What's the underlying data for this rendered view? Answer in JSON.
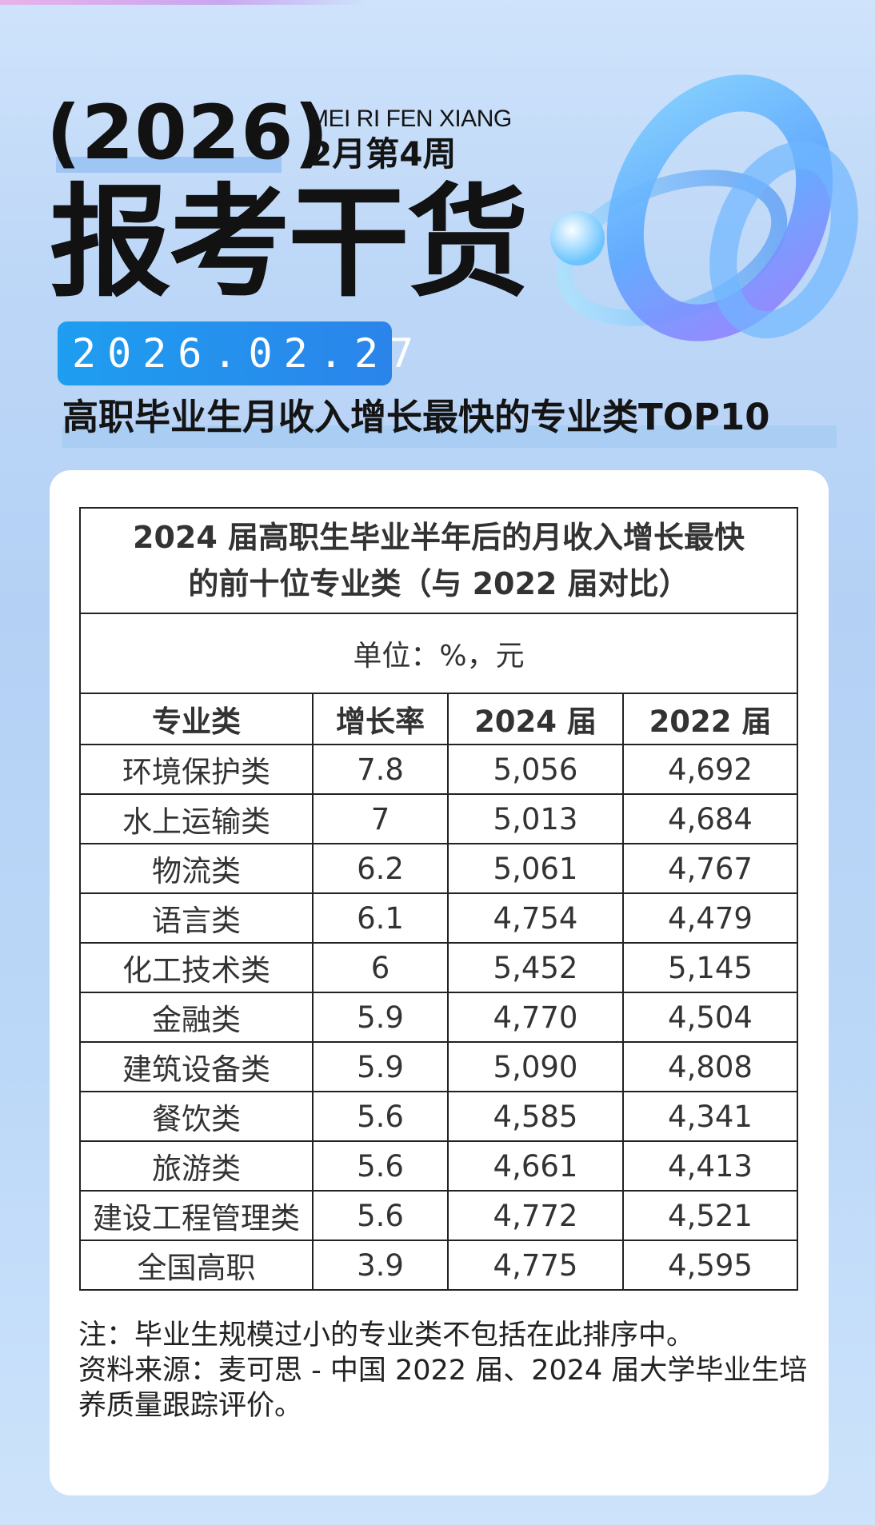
{
  "header": {
    "year": "(2026)",
    "series_en": "MEI RI FEN XIANG",
    "week": "2月第4周",
    "main_title": "报考干货",
    "date": "2026.02.27",
    "headline": "高职毕业生月收入增长最快的专业类TOP10"
  },
  "table": {
    "title_line1": "2024 届高职生毕业半年后的月收入增长最快",
    "title_line2": "的前十位专业类（与 2022 届对比）",
    "unit": "单位：%，元",
    "columns": [
      "专业类",
      "增长率",
      "2024 届",
      "2022 届"
    ],
    "rows": [
      [
        "环境保护类",
        "7.8",
        "5,056",
        "4,692"
      ],
      [
        "水上运输类",
        "7",
        "5,013",
        "4,684"
      ],
      [
        "物流类",
        "6.2",
        "5,061",
        "4,767"
      ],
      [
        "语言类",
        "6.1",
        "4,754",
        "4,479"
      ],
      [
        "化工技术类",
        "6",
        "5,452",
        "5,145"
      ],
      [
        "金融类",
        "5.9",
        "4,770",
        "4,504"
      ],
      [
        "建筑设备类",
        "5.9",
        "5,090",
        "4,808"
      ],
      [
        "餐饮类",
        "5.6",
        "4,585",
        "4,341"
      ],
      [
        "旅游类",
        "5.6",
        "4,661",
        "4,413"
      ],
      [
        "建设工程管理类",
        "5.6",
        "4,772",
        "4,521"
      ],
      [
        "全国高职",
        "3.9",
        "4,775",
        "4,595"
      ]
    ]
  },
  "notes": {
    "note": "注：毕业生规模过小的专业类不包括在此排序中。",
    "source": "资料来源：麦可思 - 中国 2022 届、2024 届大学毕业生培养质量跟踪评价。"
  },
  "colors": {
    "accent_blue": "#2b84ea",
    "background": "#bdd7f7"
  }
}
